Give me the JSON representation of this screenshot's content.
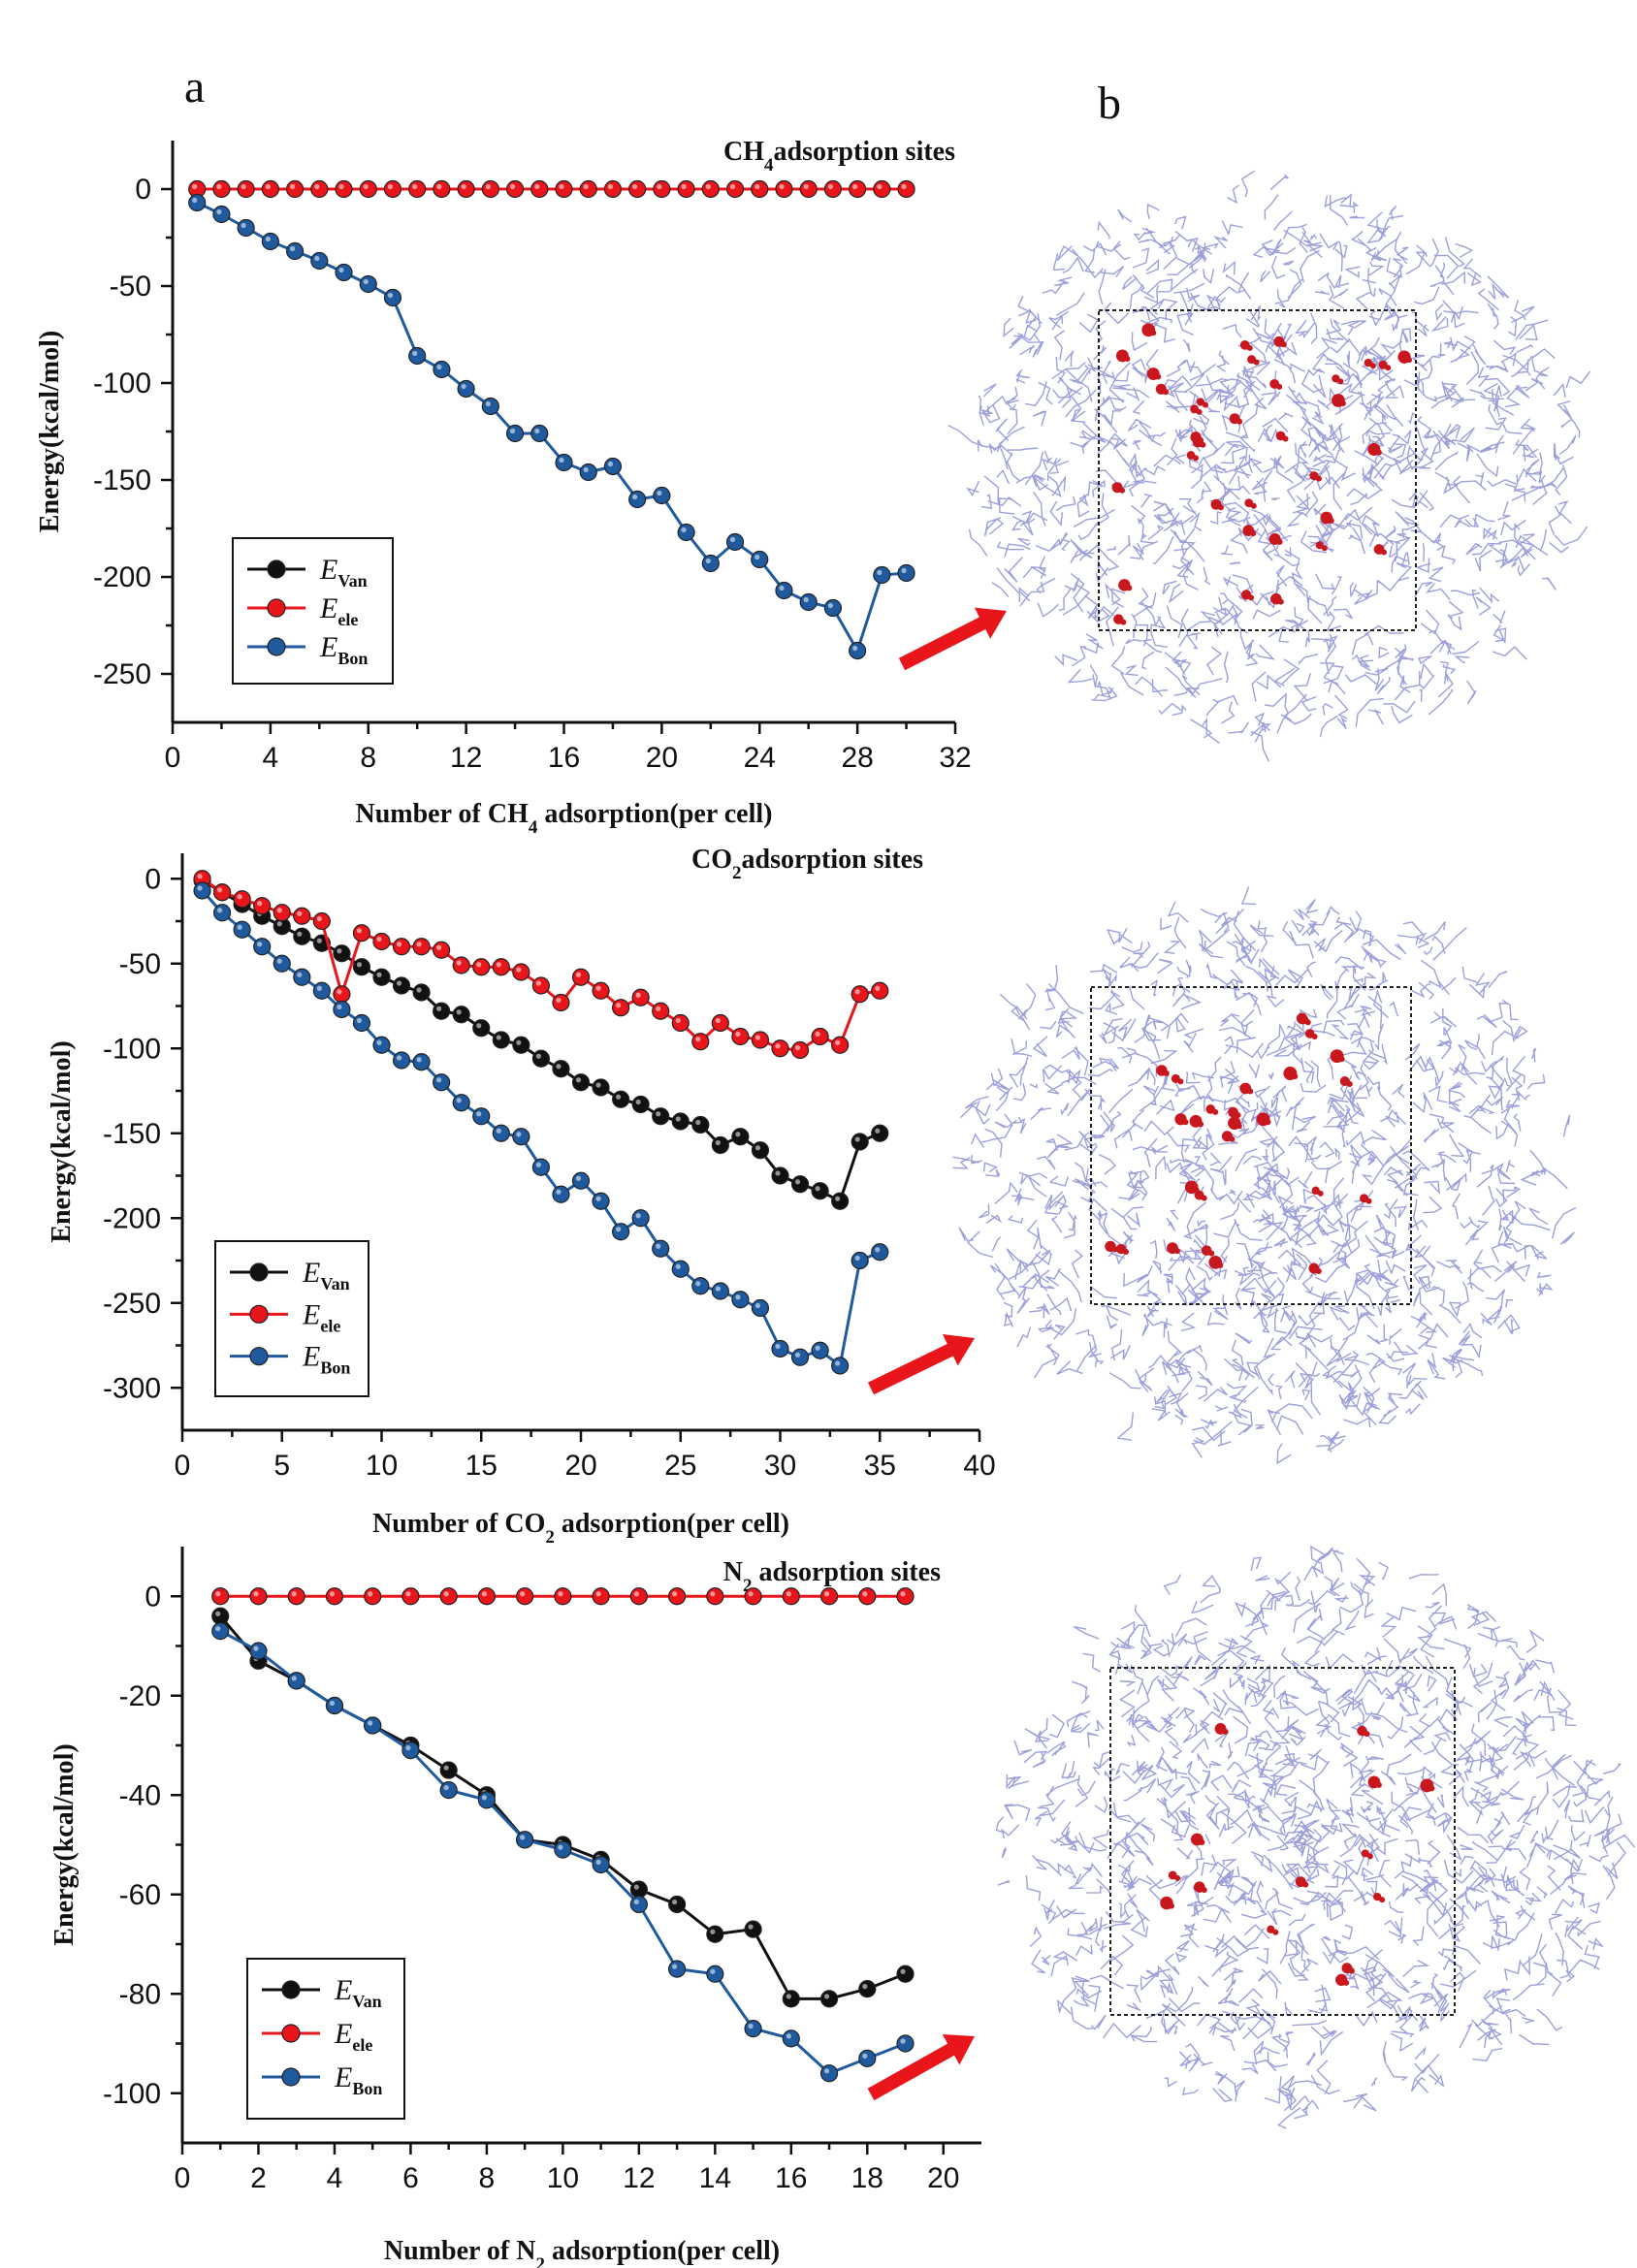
{
  "figure": {
    "panel_a_label": "a",
    "panel_b_label": "b"
  },
  "colors": {
    "van": "#111111",
    "ele": "#e8151b",
    "bon": "#1f5a9e",
    "arrow": "#e8151b",
    "molecule": "#8b8fd2",
    "adsorbate": "#c8181e"
  },
  "chart_data": [
    {
      "type": "line",
      "title": "CH4adsorption sites",
      "title_parts": [
        "CH",
        "4",
        "adsorption sites"
      ],
      "xlabel": "Number of CH4 adsorption(per cell)",
      "xlabel_parts": [
        "Number of CH",
        "4",
        " adsorption(per cell)"
      ],
      "ylabel": "Energy(kcal/mol)",
      "xlim": [
        0,
        32
      ],
      "ylim": [
        -275,
        25
      ],
      "xticks": [
        0,
        4,
        8,
        12,
        16,
        20,
        24,
        28,
        32
      ],
      "yticks": [
        0,
        -50,
        -100,
        -150,
        -200,
        -250
      ],
      "legend": {
        "position": "bottom-left",
        "entries": [
          {
            "symbol": "E",
            "sub": "Van"
          },
          {
            "symbol": "E",
            "sub": "ele"
          },
          {
            "symbol": "E",
            "sub": "Bon"
          }
        ]
      },
      "series": [
        {
          "name": "E_Van",
          "color_key": "van",
          "x": [],
          "values": []
        },
        {
          "name": "E_ele",
          "color_key": "ele",
          "x": [
            1,
            2,
            3,
            4,
            5,
            6,
            7,
            8,
            9,
            10,
            11,
            12,
            13,
            14,
            15,
            16,
            17,
            18,
            19,
            20,
            21,
            22,
            23,
            24,
            25,
            26,
            27,
            28,
            29,
            30
          ],
          "values": [
            0,
            0,
            0,
            0,
            0,
            0,
            0,
            0,
            0,
            0,
            0,
            0,
            0,
            0,
            0,
            0,
            0,
            0,
            0,
            0,
            0,
            0,
            0,
            0,
            0,
            0,
            0,
            0,
            0,
            0
          ]
        },
        {
          "name": "E_Bon",
          "color_key": "bon",
          "x": [
            1,
            2,
            3,
            4,
            5,
            6,
            7,
            8,
            9,
            10,
            11,
            12,
            13,
            14,
            15,
            16,
            17,
            18,
            19,
            20,
            21,
            22,
            23,
            24,
            25,
            26,
            27,
            28,
            29,
            30
          ],
          "values": [
            -7,
            -13,
            -20,
            -27,
            -32,
            -37,
            -43,
            -49,
            -56,
            -86,
            -93,
            -103,
            -112,
            -126,
            -126,
            -141,
            -146,
            -143,
            -160,
            -158,
            -177,
            -193,
            -182,
            -191,
            -207,
            -213,
            -216,
            -238,
            -199,
            -198
          ]
        }
      ]
    },
    {
      "type": "line",
      "title": "CO2adsorption sites",
      "title_parts": [
        "CO",
        "2",
        "adsorption sites"
      ],
      "xlabel": "Number of CO2 adsorption(per cell)",
      "xlabel_parts": [
        "Number of CO",
        "2",
        " adsorption(per cell)"
      ],
      "ylabel": "Energy(kcal/mol)",
      "xlim": [
        0,
        40
      ],
      "ylim": [
        -325,
        15
      ],
      "xticks": [
        0,
        5,
        10,
        15,
        20,
        25,
        30,
        35,
        40
      ],
      "yticks": [
        0,
        -50,
        -100,
        -150,
        -200,
        -250,
        -300
      ],
      "legend": {
        "position": "bottom-left",
        "entries": [
          {
            "symbol": "E",
            "sub": "Van"
          },
          {
            "symbol": "E",
            "sub": "ele"
          },
          {
            "symbol": "E",
            "sub": "Bon"
          }
        ]
      },
      "series": [
        {
          "name": "E_Van",
          "color_key": "van",
          "x": [
            1,
            2,
            3,
            4,
            5,
            6,
            7,
            8,
            9,
            10,
            11,
            12,
            13,
            14,
            15,
            16,
            17,
            18,
            19,
            20,
            21,
            22,
            23,
            24,
            25,
            26,
            27,
            28,
            29,
            30,
            31,
            32,
            33,
            34,
            35
          ],
          "values": [
            -1,
            -8,
            -15,
            -22,
            -28,
            -34,
            -38,
            -44,
            -52,
            -58,
            -63,
            -67,
            -78,
            -80,
            -88,
            -95,
            -98,
            -106,
            -112,
            -120,
            -123,
            -130,
            -133,
            -140,
            -143,
            -145,
            -157,
            -152,
            -160,
            -175,
            -180,
            -184,
            -190,
            -155,
            -150
          ]
        },
        {
          "name": "E_ele",
          "color_key": "ele",
          "x": [
            1,
            2,
            3,
            4,
            5,
            6,
            7,
            8,
            9,
            10,
            11,
            12,
            13,
            14,
            15,
            16,
            17,
            18,
            19,
            20,
            21,
            22,
            23,
            24,
            25,
            26,
            27,
            28,
            29,
            30,
            31,
            32,
            33,
            34,
            35
          ],
          "values": [
            0,
            -8,
            -12,
            -16,
            -20,
            -22,
            -25,
            -68,
            -32,
            -37,
            -40,
            -40,
            -42,
            -51,
            -52,
            -52,
            -55,
            -63,
            -73,
            -58,
            -66,
            -76,
            -70,
            -78,
            -85,
            -96,
            -85,
            -93,
            -95,
            -100,
            -101,
            -93,
            -98,
            -68,
            -66
          ]
        },
        {
          "name": "E_Bon",
          "color_key": "bon",
          "x": [
            1,
            2,
            3,
            4,
            5,
            6,
            7,
            8,
            9,
            10,
            11,
            12,
            13,
            14,
            15,
            16,
            17,
            18,
            19,
            20,
            21,
            22,
            23,
            24,
            25,
            26,
            27,
            28,
            29,
            30,
            31,
            32,
            33,
            34,
            35
          ],
          "values": [
            -7,
            -20,
            -30,
            -40,
            -50,
            -58,
            -66,
            -77,
            -85,
            -98,
            -107,
            -108,
            -120,
            -132,
            -140,
            -150,
            -152,
            -170,
            -186,
            -178,
            -190,
            -208,
            -200,
            -218,
            -230,
            -240,
            -243,
            -248,
            -253,
            -277,
            -282,
            -278,
            -287,
            -225,
            -220
          ]
        }
      ]
    },
    {
      "type": "line",
      "title": "N2 adsorption sites",
      "title_parts": [
        "N",
        "2",
        " adsorption sites"
      ],
      "xlabel": "Number of  N2 adsorption(per cell)",
      "xlabel_parts": [
        "Number of  N",
        "2",
        " adsorption(per cell)"
      ],
      "ylabel": "Energy(kcal/mol)",
      "xlim": [
        0,
        21
      ],
      "ylim": [
        -110,
        10
      ],
      "xticks": [
        0,
        2,
        4,
        6,
        8,
        10,
        12,
        14,
        16,
        18,
        20
      ],
      "yticks": [
        0,
        -20,
        -40,
        -60,
        -80,
        -100
      ],
      "legend": {
        "position": "bottom-left",
        "entries": [
          {
            "symbol": "E",
            "sub": "Van"
          },
          {
            "symbol": "E",
            "sub": "ele"
          },
          {
            "symbol": "E",
            "sub": "Bon"
          }
        ]
      },
      "series": [
        {
          "name": "E_Van",
          "color_key": "van",
          "x": [
            1,
            2,
            3,
            4,
            5,
            6,
            7,
            8,
            9,
            10,
            11,
            12,
            13,
            14,
            15,
            16,
            17,
            18,
            19
          ],
          "values": [
            -4,
            -13,
            -17,
            -22,
            -26,
            -30,
            -35,
            -40,
            -49,
            -50,
            -53,
            -59,
            -62,
            -68,
            -67,
            -81,
            -81,
            -79,
            -76
          ]
        },
        {
          "name": "E_ele",
          "color_key": "ele",
          "x": [
            1,
            2,
            3,
            4,
            5,
            6,
            7,
            8,
            9,
            10,
            11,
            12,
            13,
            14,
            15,
            16,
            17,
            18,
            19
          ],
          "values": [
            0,
            0,
            0,
            0,
            0,
            0,
            0,
            0,
            0,
            0,
            0,
            0,
            0,
            0,
            0,
            0,
            0,
            0,
            0
          ]
        },
        {
          "name": "E_Bon",
          "color_key": "bon",
          "x": [
            1,
            2,
            3,
            4,
            5,
            6,
            7,
            8,
            9,
            10,
            11,
            12,
            13,
            14,
            15,
            16,
            17,
            18,
            19
          ],
          "values": [
            -7,
            -11,
            -17,
            -22,
            -26,
            -31,
            -39,
            -41,
            -49,
            -51,
            -54,
            -62,
            -75,
            -76,
            -87,
            -89,
            -96,
            -93,
            -90
          ]
        }
      ]
    }
  ]
}
